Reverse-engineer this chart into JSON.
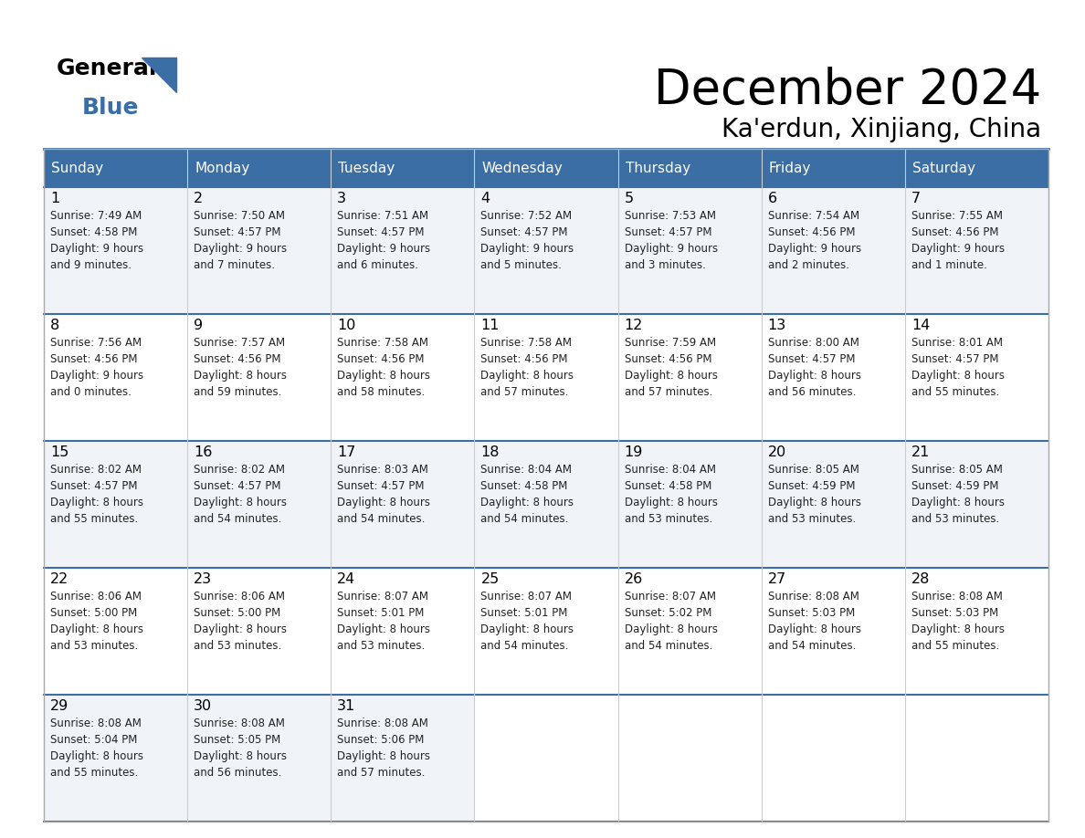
{
  "title": "December 2024",
  "subtitle": "Ka'erdun, Xinjiang, China",
  "header_color": "#3a6ea5",
  "header_text_color": "#ffffff",
  "border_color": "#3a6ea5",
  "row_bg_colors": [
    "#f0f4f8",
    "#ffffff"
  ],
  "text_color": "#222222",
  "day_headers": [
    "Sunday",
    "Monday",
    "Tuesday",
    "Wednesday",
    "Thursday",
    "Friday",
    "Saturday"
  ],
  "days": [
    {
      "day": 1,
      "col": 0,
      "row": 0,
      "sunrise": "7:49 AM",
      "sunset": "4:58 PM",
      "daylight_h": "9 hours",
      "daylight_m": "and 9 minutes."
    },
    {
      "day": 2,
      "col": 1,
      "row": 0,
      "sunrise": "7:50 AM",
      "sunset": "4:57 PM",
      "daylight_h": "9 hours",
      "daylight_m": "and 7 minutes."
    },
    {
      "day": 3,
      "col": 2,
      "row": 0,
      "sunrise": "7:51 AM",
      "sunset": "4:57 PM",
      "daylight_h": "9 hours",
      "daylight_m": "and 6 minutes."
    },
    {
      "day": 4,
      "col": 3,
      "row": 0,
      "sunrise": "7:52 AM",
      "sunset": "4:57 PM",
      "daylight_h": "9 hours",
      "daylight_m": "and 5 minutes."
    },
    {
      "day": 5,
      "col": 4,
      "row": 0,
      "sunrise": "7:53 AM",
      "sunset": "4:57 PM",
      "daylight_h": "9 hours",
      "daylight_m": "and 3 minutes."
    },
    {
      "day": 6,
      "col": 5,
      "row": 0,
      "sunrise": "7:54 AM",
      "sunset": "4:56 PM",
      "daylight_h": "9 hours",
      "daylight_m": "and 2 minutes."
    },
    {
      "day": 7,
      "col": 6,
      "row": 0,
      "sunrise": "7:55 AM",
      "sunset": "4:56 PM",
      "daylight_h": "9 hours",
      "daylight_m": "and 1 minute."
    },
    {
      "day": 8,
      "col": 0,
      "row": 1,
      "sunrise": "7:56 AM",
      "sunset": "4:56 PM",
      "daylight_h": "9 hours",
      "daylight_m": "and 0 minutes."
    },
    {
      "day": 9,
      "col": 1,
      "row": 1,
      "sunrise": "7:57 AM",
      "sunset": "4:56 PM",
      "daylight_h": "8 hours",
      "daylight_m": "and 59 minutes."
    },
    {
      "day": 10,
      "col": 2,
      "row": 1,
      "sunrise": "7:58 AM",
      "sunset": "4:56 PM",
      "daylight_h": "8 hours",
      "daylight_m": "and 58 minutes."
    },
    {
      "day": 11,
      "col": 3,
      "row": 1,
      "sunrise": "7:58 AM",
      "sunset": "4:56 PM",
      "daylight_h": "8 hours",
      "daylight_m": "and 57 minutes."
    },
    {
      "day": 12,
      "col": 4,
      "row": 1,
      "sunrise": "7:59 AM",
      "sunset": "4:56 PM",
      "daylight_h": "8 hours",
      "daylight_m": "and 57 minutes."
    },
    {
      "day": 13,
      "col": 5,
      "row": 1,
      "sunrise": "8:00 AM",
      "sunset": "4:57 PM",
      "daylight_h": "8 hours",
      "daylight_m": "and 56 minutes."
    },
    {
      "day": 14,
      "col": 6,
      "row": 1,
      "sunrise": "8:01 AM",
      "sunset": "4:57 PM",
      "daylight_h": "8 hours",
      "daylight_m": "and 55 minutes."
    },
    {
      "day": 15,
      "col": 0,
      "row": 2,
      "sunrise": "8:02 AM",
      "sunset": "4:57 PM",
      "daylight_h": "8 hours",
      "daylight_m": "and 55 minutes."
    },
    {
      "day": 16,
      "col": 1,
      "row": 2,
      "sunrise": "8:02 AM",
      "sunset": "4:57 PM",
      "daylight_h": "8 hours",
      "daylight_m": "and 54 minutes."
    },
    {
      "day": 17,
      "col": 2,
      "row": 2,
      "sunrise": "8:03 AM",
      "sunset": "4:57 PM",
      "daylight_h": "8 hours",
      "daylight_m": "and 54 minutes."
    },
    {
      "day": 18,
      "col": 3,
      "row": 2,
      "sunrise": "8:04 AM",
      "sunset": "4:58 PM",
      "daylight_h": "8 hours",
      "daylight_m": "and 54 minutes."
    },
    {
      "day": 19,
      "col": 4,
      "row": 2,
      "sunrise": "8:04 AM",
      "sunset": "4:58 PM",
      "daylight_h": "8 hours",
      "daylight_m": "and 53 minutes."
    },
    {
      "day": 20,
      "col": 5,
      "row": 2,
      "sunrise": "8:05 AM",
      "sunset": "4:59 PM",
      "daylight_h": "8 hours",
      "daylight_m": "and 53 minutes."
    },
    {
      "day": 21,
      "col": 6,
      "row": 2,
      "sunrise": "8:05 AM",
      "sunset": "4:59 PM",
      "daylight_h": "8 hours",
      "daylight_m": "and 53 minutes."
    },
    {
      "day": 22,
      "col": 0,
      "row": 3,
      "sunrise": "8:06 AM",
      "sunset": "5:00 PM",
      "daylight_h": "8 hours",
      "daylight_m": "and 53 minutes."
    },
    {
      "day": 23,
      "col": 1,
      "row": 3,
      "sunrise": "8:06 AM",
      "sunset": "5:00 PM",
      "daylight_h": "8 hours",
      "daylight_m": "and 53 minutes."
    },
    {
      "day": 24,
      "col": 2,
      "row": 3,
      "sunrise": "8:07 AM",
      "sunset": "5:01 PM",
      "daylight_h": "8 hours",
      "daylight_m": "and 53 minutes."
    },
    {
      "day": 25,
      "col": 3,
      "row": 3,
      "sunrise": "8:07 AM",
      "sunset": "5:01 PM",
      "daylight_h": "8 hours",
      "daylight_m": "and 54 minutes."
    },
    {
      "day": 26,
      "col": 4,
      "row": 3,
      "sunrise": "8:07 AM",
      "sunset": "5:02 PM",
      "daylight_h": "8 hours",
      "daylight_m": "and 54 minutes."
    },
    {
      "day": 27,
      "col": 5,
      "row": 3,
      "sunrise": "8:08 AM",
      "sunset": "5:03 PM",
      "daylight_h": "8 hours",
      "daylight_m": "and 54 minutes."
    },
    {
      "day": 28,
      "col": 6,
      "row": 3,
      "sunrise": "8:08 AM",
      "sunset": "5:03 PM",
      "daylight_h": "8 hours",
      "daylight_m": "and 55 minutes."
    },
    {
      "day": 29,
      "col": 0,
      "row": 4,
      "sunrise": "8:08 AM",
      "sunset": "5:04 PM",
      "daylight_h": "8 hours",
      "daylight_m": "and 55 minutes."
    },
    {
      "day": 30,
      "col": 1,
      "row": 4,
      "sunrise": "8:08 AM",
      "sunset": "5:05 PM",
      "daylight_h": "8 hours",
      "daylight_m": "and 56 minutes."
    },
    {
      "day": 31,
      "col": 2,
      "row": 4,
      "sunrise": "8:08 AM",
      "sunset": "5:06 PM",
      "daylight_h": "8 hours",
      "daylight_m": "and 57 minutes."
    }
  ]
}
